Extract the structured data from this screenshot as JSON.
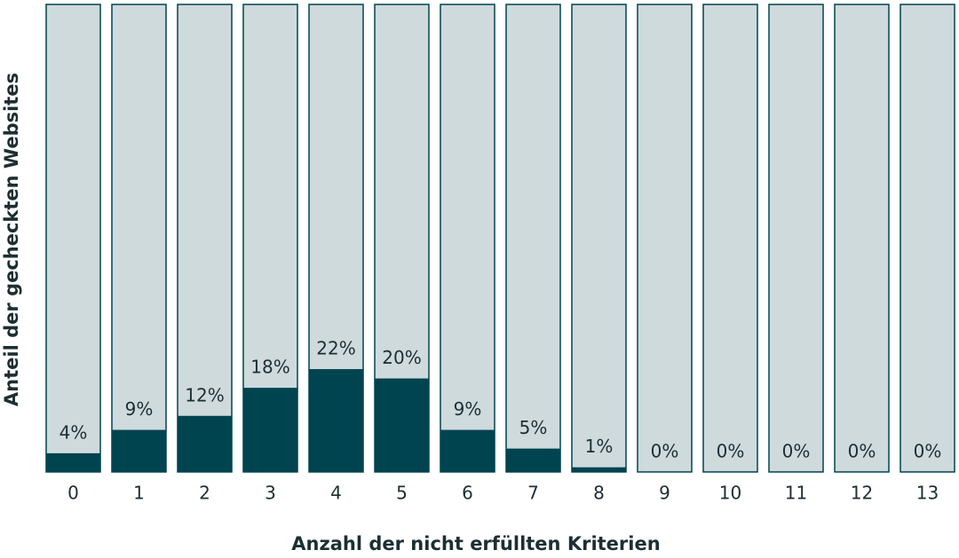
{
  "chart_data": {
    "type": "bar",
    "x_label": "Anzahl der nicht erfüllten Kriterien",
    "y_label": "Anteil der gecheckten Websites",
    "categories": [
      "0",
      "1",
      "2",
      "3",
      "4",
      "5",
      "6",
      "7",
      "8",
      "9",
      "10",
      "11",
      "12",
      "13"
    ],
    "values": [
      4,
      9,
      12,
      18,
      22,
      20,
      9,
      5,
      1,
      0,
      0,
      0,
      0,
      0
    ],
    "value_labels": [
      "4%",
      "9%",
      "12%",
      "18%",
      "22%",
      "20%",
      "9%",
      "5%",
      "1%",
      "0%",
      "0%",
      "0%",
      "0%",
      "0%"
    ],
    "color": "#00444f",
    "track_color": "#cfdadd",
    "ylim": [
      0,
      100
    ]
  }
}
